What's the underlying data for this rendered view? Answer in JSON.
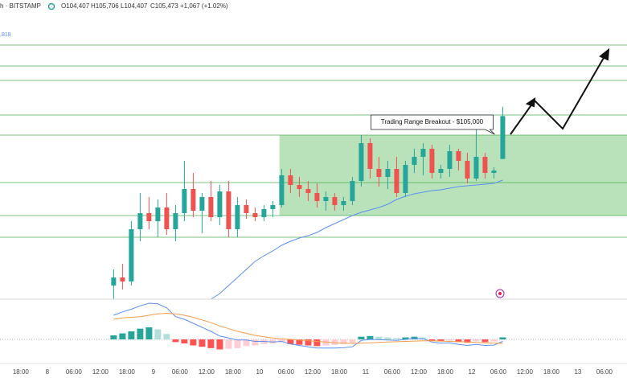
{
  "chart_data": {
    "type": "candlestick",
    "header": {
      "symbol": "h · BITSTAMP",
      "open": "O104,407",
      "high": "H105,706",
      "low": "L104,407",
      "close": "C105,473",
      "change": "+1,067 (+1.02%)",
      "side_value": ",818"
    },
    "x": [
      15,
      17,
      19,
      21,
      23,
      25,
      27,
      29,
      31,
      33,
      35,
      37,
      39,
      41,
      43,
      45,
      47,
      49,
      51,
      53,
      55,
      57,
      59,
      61,
      63,
      65,
      67,
      69,
      71,
      73,
      75,
      77,
      79,
      81,
      83,
      85,
      87,
      89,
      91,
      93,
      95,
      97,
      99,
      101,
      103
    ],
    "open": [
      101260,
      101460,
      101360,
      102660,
      103060,
      102860,
      103200,
      102660,
      103060,
      103660,
      103120,
      103460,
      102960,
      103600,
      102660,
      103260,
      103060,
      102960,
      103160,
      103260,
      104000,
      103760,
      103660,
      103560,
      103360,
      103460,
      103260,
      103360,
      103860,
      104800,
      104160,
      103960,
      104160,
      103560,
      104260,
      104460,
      104660,
      104060,
      104160,
      104600,
      104360,
      103920,
      104460,
      104060,
      104407
    ],
    "high": [
      101660,
      101800,
      102860,
      103560,
      103460,
      103400,
      103560,
      103260,
      104360,
      104060,
      103560,
      103860,
      103760,
      103860,
      103460,
      103400,
      103200,
      103260,
      103360,
      104160,
      104160,
      103960,
      103860,
      103800,
      103600,
      103560,
      103460,
      103960,
      105000,
      104920,
      104460,
      104360,
      104460,
      104360,
      104660,
      104800,
      104760,
      104260,
      104760,
      104660,
      104560,
      105160,
      104560,
      104200,
      105706
    ],
    "low": [
      100920,
      101160,
      101260,
      102360,
      102660,
      102460,
      102520,
      102360,
      102860,
      102960,
      102560,
      102860,
      102760,
      102460,
      102460,
      102920,
      102860,
      102860,
      102960,
      103200,
      103560,
      103460,
      103360,
      103200,
      103120,
      103120,
      103120,
      103260,
      103720,
      103920,
      103720,
      103660,
      103460,
      103460,
      104060,
      104000,
      103920,
      103920,
      103960,
      104120,
      103800,
      103860,
      103920,
      103920,
      104407
    ],
    "close": [
      101460,
      101360,
      102660,
      103060,
      102860,
      103200,
      102660,
      103060,
      103660,
      103120,
      103460,
      102960,
      103600,
      102660,
      103260,
      103060,
      102960,
      103160,
      103260,
      104000,
      103760,
      103660,
      103560,
      103360,
      103460,
      103260,
      103360,
      103860,
      104800,
      104160,
      103960,
      104160,
      103560,
      104260,
      104460,
      104660,
      104060,
      104160,
      104600,
      104360,
      103920,
      104460,
      104060,
      104120,
      105473
    ],
    "up_color": "#26a69a",
    "down_color": "#ef5350",
    "ma": {
      "color": "#5b8ff0",
      "values": [
        null,
        null,
        null,
        null,
        null,
        null,
        null,
        null,
        null,
        null,
        null,
        100920,
        101060,
        101260,
        101460,
        101660,
        101860,
        102000,
        102120,
        102260,
        102360,
        102440,
        102500,
        102580,
        102700,
        102800,
        102900,
        103000,
        103080,
        103140,
        103200,
        103280,
        103400,
        103480,
        103540,
        103580,
        103620,
        103640,
        103680,
        103720,
        103740,
        103760,
        103780,
        103800,
        103880
      ]
    },
    "levels": {
      "color": "#4caf50",
      "values": [
        107240,
        106720,
        106360,
        105500,
        105000,
        103820,
        103000,
        102460
      ]
    },
    "range_box": {
      "x_start": 52.5,
      "ylim": [
        103000,
        105000
      ],
      "color": "#b9e2bb"
    },
    "annotation": "Trading Range Breakout - $105,000",
    "xlim": [
      -10.7,
      131.1
    ],
    "ylim": [
      100920,
      108360
    ],
    "xticks": [
      {
        "value": -6,
        "label": "18:00"
      },
      {
        "value": 0,
        "label": "8"
      },
      {
        "value": 6,
        "label": "06:00"
      },
      {
        "value": 12,
        "label": "12:00"
      },
      {
        "value": 18,
        "label": "18:00"
      },
      {
        "value": 24,
        "label": "9"
      },
      {
        "value": 30,
        "label": "06:00"
      },
      {
        "value": 36,
        "label": "12:00"
      },
      {
        "value": 42,
        "label": "18:00"
      },
      {
        "value": 48,
        "label": "10"
      },
      {
        "value": 54,
        "label": "06:00"
      },
      {
        "value": 60,
        "label": "12:00"
      },
      {
        "value": 66,
        "label": "18:00"
      },
      {
        "value": 72,
        "label": "11"
      },
      {
        "value": 78,
        "label": "06:00"
      },
      {
        "value": 84,
        "label": "12:00"
      },
      {
        "value": 90,
        "label": "18:00"
      },
      {
        "value": 96,
        "label": "12"
      },
      {
        "value": 102,
        "label": "06:00"
      },
      {
        "value": 108,
        "label": "12:00"
      },
      {
        "value": 114,
        "label": "18:00"
      },
      {
        "value": 120,
        "label": "13"
      },
      {
        "value": 126,
        "label": "06:00"
      }
    ],
    "macd": {
      "ylim": [
        -600,
        600
      ],
      "macd_color": "#5b8ff0",
      "signal_color": "#f39c4a",
      "hist_colors": [
        "#26a69a",
        "#b2dfdb",
        "#ff5252",
        "#ffcdd2"
      ],
      "macd": [
        360,
        410,
        450,
        500,
        540,
        530,
        470,
        340,
        300,
        240,
        180,
        120,
        50,
        20,
        -10,
        -10,
        -30,
        -30,
        -40,
        -30,
        -70,
        -90,
        -110,
        -130,
        -130,
        -130,
        -125,
        -110,
        -15,
        0,
        -5,
        -10,
        -15,
        0,
        15,
        10,
        -40,
        -55,
        -50,
        -75,
        -90,
        -75,
        -90,
        -85,
        -30
      ],
      "signal": [
        300,
        320,
        330,
        340,
        360,
        380,
        390,
        380,
        360,
        330,
        290,
        250,
        200,
        160,
        120,
        90,
        60,
        40,
        20,
        10,
        0,
        -10,
        -20,
        -30,
        -40,
        -50,
        -55,
        -60,
        -55,
        -50,
        -45,
        -40,
        -35,
        -30,
        -25,
        -20,
        -20,
        -25,
        -30,
        -35,
        -40,
        -45,
        -50,
        -55,
        -60
      ],
      "histogram": [
        60,
        90,
        120,
        160,
        180,
        150,
        80,
        -40,
        -60,
        -90,
        -110,
        -130,
        -150,
        -140,
        -130,
        -100,
        -90,
        -70,
        -60,
        -40,
        -70,
        -80,
        -90,
        -100,
        -90,
        -80,
        -70,
        -50,
        40,
        50,
        40,
        30,
        20,
        30,
        40,
        30,
        -20,
        -30,
        -20,
        -40,
        -50,
        -30,
        -40,
        -30,
        30
      ]
    }
  }
}
